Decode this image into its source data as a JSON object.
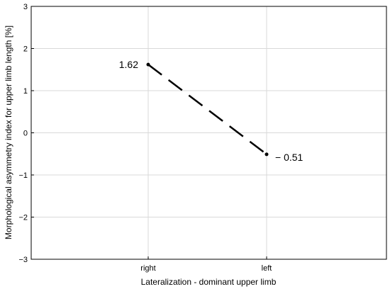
{
  "chart_data": {
    "type": "line",
    "categories": [
      "right",
      "left"
    ],
    "series": [
      {
        "values": [
          1.62,
          -0.51
        ]
      }
    ],
    "data_labels": [
      "1.62",
      "− 0.51"
    ],
    "xlabel": "Lateralization - dominant upper limb",
    "ylabel": "Morphological asymmetry index for upper limb length [%]",
    "ylim": [
      -3,
      3
    ],
    "yticks": [
      3,
      2,
      1,
      0,
      -1,
      -2,
      -3
    ],
    "ytick_labels": [
      "3",
      "2",
      "1",
      "0",
      "−1",
      "−2",
      "−3"
    ],
    "grid": true,
    "line_style": "dashed",
    "line_color": "#000000",
    "grid_color": "#d9d9d9"
  }
}
